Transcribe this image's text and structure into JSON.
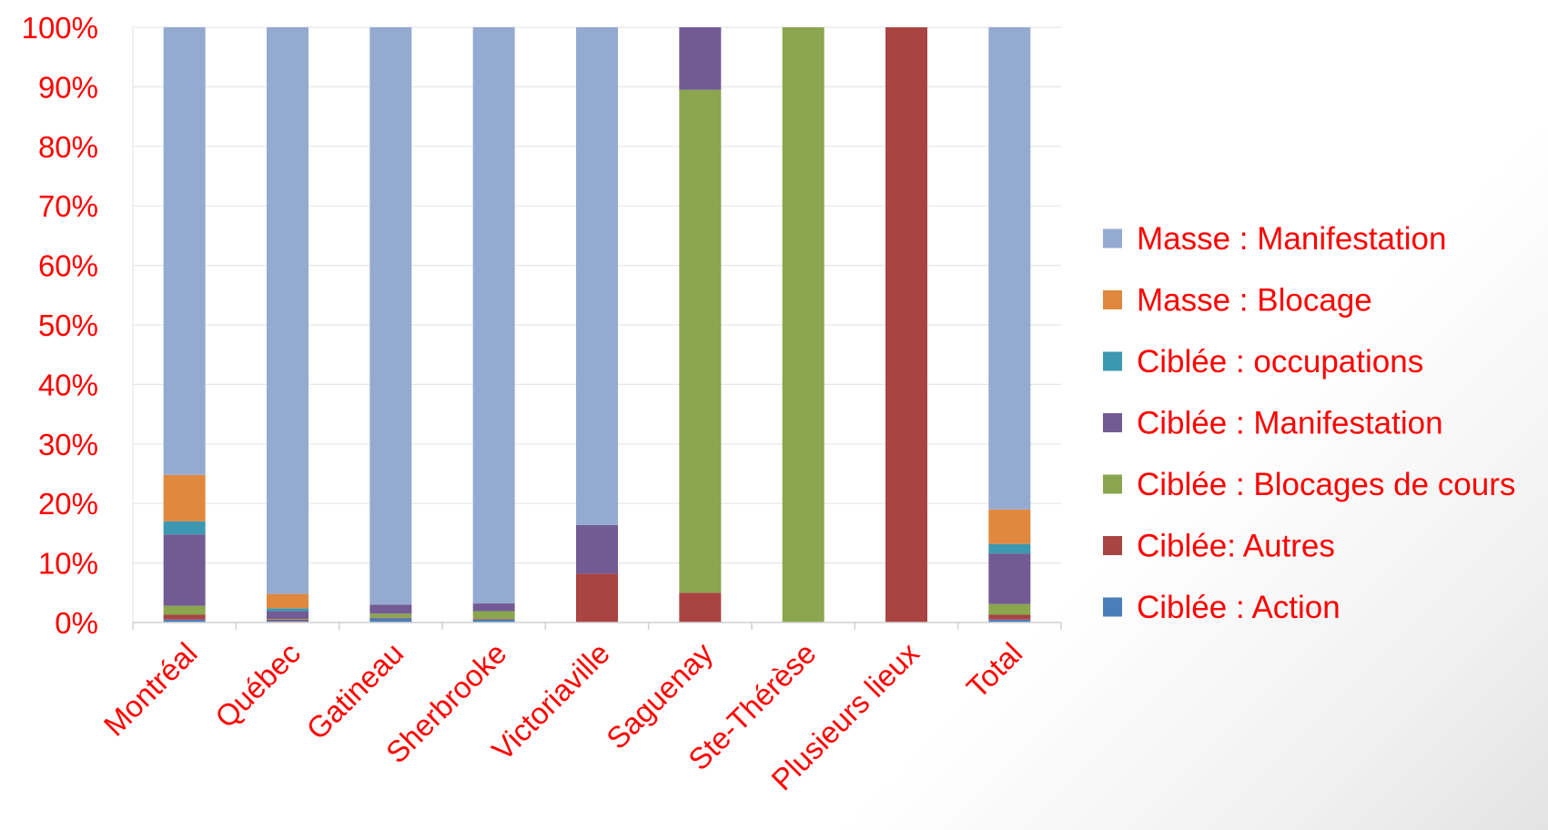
{
  "chart_data": {
    "type": "bar",
    "stacked": true,
    "percent_stacked": true,
    "title": "",
    "xlabel": "",
    "ylabel": "",
    "ylim": [
      0,
      100
    ],
    "y_ticks": [
      "0%",
      "10%",
      "20%",
      "30%",
      "40%",
      "50%",
      "60%",
      "70%",
      "80%",
      "90%",
      "100%"
    ],
    "grid": true,
    "legend_position": "right",
    "categories": [
      "Montréal",
      "Québec",
      "Gatineau",
      "Sherbrooke",
      "Victoriaville",
      "Saguenay",
      "Ste-Thérèse",
      "Plusieurs lieux",
      "Total"
    ],
    "series": [
      {
        "name": "Ciblée : Action",
        "color": "#4a7ebb",
        "values": [
          0.5,
          0.3,
          0.7,
          0.5,
          0,
          0,
          0,
          0,
          0.5
        ]
      },
      {
        "name": "Ciblée: Autres",
        "color": "#a94442",
        "values": [
          0.8,
          0.2,
          0.1,
          0.1,
          8.2,
          5.0,
          0,
          100,
          0.8
        ]
      },
      {
        "name": "Ciblée : Blocages de cours",
        "color": "#8aa64e",
        "values": [
          1.5,
          0.1,
          0.7,
          1.3,
          0,
          84.5,
          100,
          0,
          1.8
        ]
      },
      {
        "name": "Ciblée : Manifestation",
        "color": "#725b94",
        "values": [
          12.0,
          1.3,
          1.5,
          1.3,
          8.2,
          10.5,
          0,
          0,
          8.5
        ]
      },
      {
        "name": "Ciblée : occupations",
        "color": "#3c98b0",
        "values": [
          2.2,
          0.5,
          0,
          0,
          0,
          0,
          0,
          0,
          1.6
        ]
      },
      {
        "name": "Masse : Blocage",
        "color": "#e0883e",
        "values": [
          7.8,
          2.4,
          0,
          0,
          0,
          0,
          0,
          0,
          5.8
        ]
      },
      {
        "name": "Masse : Manifestation",
        "color": "#95aad1",
        "values": [
          75.2,
          95.2,
          97.0,
          96.8,
          83.6,
          0,
          0,
          0,
          81.0
        ]
      }
    ],
    "legend_order": [
      "Masse : Manifestation",
      "Masse : Blocage",
      "Ciblée : occupations",
      "Ciblée : Manifestation",
      "Ciblée : Blocages de cours",
      "Ciblée: Autres",
      "Ciblée : Action"
    ],
    "colors": {
      "text": "#ff0000",
      "grid": "#e6e6e6",
      "axis": "#d0d0d0"
    }
  }
}
